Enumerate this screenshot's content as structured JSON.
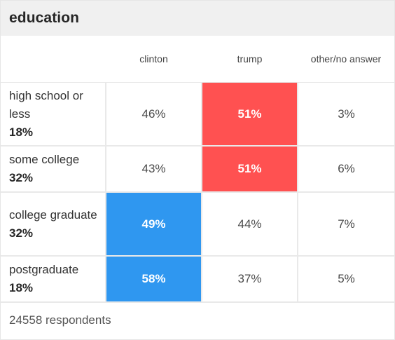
{
  "title": "education",
  "columns": [
    "clinton",
    "trump",
    "other/no answer"
  ],
  "rows": [
    {
      "label": "high school or less",
      "share": "18%",
      "values": [
        "46%",
        "51%",
        "3%"
      ]
    },
    {
      "label": "some college",
      "share": "32%",
      "values": [
        "43%",
        "51%",
        "6%"
      ]
    },
    {
      "label": "college graduate",
      "share": "32%",
      "values": [
        "49%",
        "44%",
        "7%"
      ]
    },
    {
      "label": "postgraduate",
      "share": "18%",
      "values": [
        "58%",
        "37%",
        "5%"
      ]
    }
  ],
  "footer": "24558 respondents",
  "colors": {
    "trump": "#ff5151",
    "clinton": "#2f97f0",
    "header_bg": "#f0f0f0"
  }
}
